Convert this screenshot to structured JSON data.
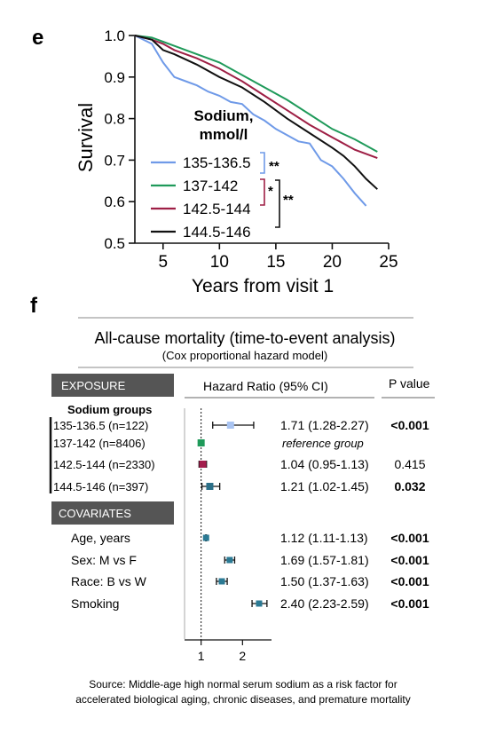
{
  "panels": {
    "e_label": "e",
    "f_label": "f"
  },
  "chart_data": [
    {
      "type": "line",
      "panel": "e",
      "xlabel": "Years from visit 1",
      "ylabel": "Survival",
      "xlim": [
        2.5,
        25
      ],
      "ylim": [
        0.5,
        1.0
      ],
      "x_ticks": [
        "5",
        "10",
        "15",
        "20",
        "25"
      ],
      "y_ticks": [
        "0.5",
        "0.6",
        "0.7",
        "0.8",
        "0.9",
        "1.0"
      ],
      "legend_title": [
        "Sodium,",
        "mmol/l"
      ],
      "legend_position": "center-left",
      "grid": false,
      "series": [
        {
          "name": "135-136.5",
          "color": "#6f9ae8",
          "x": [
            2.5,
            4,
            5,
            6,
            7,
            8,
            9,
            10,
            11,
            12,
            13,
            14,
            15,
            16,
            17,
            18,
            19,
            20,
            21,
            22,
            23
          ],
          "y": [
            1.0,
            0.98,
            0.935,
            0.9,
            0.89,
            0.88,
            0.865,
            0.855,
            0.84,
            0.835,
            0.81,
            0.795,
            0.775,
            0.76,
            0.745,
            0.74,
            0.7,
            0.685,
            0.655,
            0.62,
            0.59
          ]
        },
        {
          "name": "137-142",
          "color": "#1f9a5a",
          "x": [
            2.5,
            4,
            5,
            6,
            8,
            10,
            12,
            14,
            16,
            18,
            20,
            22,
            24
          ],
          "y": [
            1.0,
            0.995,
            0.985,
            0.975,
            0.955,
            0.935,
            0.905,
            0.875,
            0.845,
            0.81,
            0.775,
            0.75,
            0.72
          ]
        },
        {
          "name": "142.5-144",
          "color": "#9e1f45",
          "x": [
            2.5,
            4,
            5,
            6,
            8,
            10,
            12,
            14,
            16,
            18,
            20,
            22,
            24
          ],
          "y": [
            1.0,
            0.99,
            0.98,
            0.965,
            0.945,
            0.92,
            0.89,
            0.855,
            0.82,
            0.785,
            0.755,
            0.725,
            0.705
          ]
        },
        {
          "name": "144.5-146",
          "color": "#111111",
          "x": [
            2.5,
            4,
            5,
            6,
            8,
            10,
            12,
            14,
            16,
            18,
            20,
            21,
            22,
            23,
            24
          ],
          "y": [
            1.0,
            0.99,
            0.965,
            0.955,
            0.93,
            0.9,
            0.875,
            0.84,
            0.8,
            0.765,
            0.73,
            0.71,
            0.685,
            0.655,
            0.63
          ]
        }
      ],
      "annotations": [
        {
          "text": "**",
          "between": [
            "135-136.5",
            "137-142"
          ]
        },
        {
          "text": "*",
          "between": [
            "137-142",
            "142.5-144"
          ]
        },
        {
          "text": "**",
          "between": [
            "137-142",
            "144.5-146"
          ]
        }
      ]
    },
    {
      "type": "forest",
      "panel": "f",
      "title": "All-cause mortality (time-to-event analysis)",
      "subtitle": "(Cox proportional hazard model)",
      "exposure_header": "EXPOSURE",
      "covariates_header": "COVARIATES",
      "hr_header": "Hazard Ratio (95% CI)",
      "p_header": "P value",
      "group_heading": "Sodium groups",
      "reference_line": 1,
      "x_ticks": [
        "1",
        "2"
      ],
      "xlim": [
        0.6,
        2.7
      ],
      "rows": [
        {
          "label": "135-136.5 (n=122)",
          "hr": 1.71,
          "lo": 1.28,
          "hi": 2.27,
          "text": "1.71 (1.28-2.27)",
          "p": "<0.001",
          "bold": true,
          "color": "#a9c4f2",
          "section": "exposure"
        },
        {
          "label": "137-142 (n=8406)",
          "hr": 1.0,
          "lo": 1.0,
          "hi": 1.0,
          "text": "reference group",
          "p": "",
          "bold": false,
          "italic": true,
          "color": "#1f9a5a",
          "section": "exposure"
        },
        {
          "label": "142.5-144 (n=2330)",
          "hr": 1.04,
          "lo": 0.95,
          "hi": 1.13,
          "text": "1.04 (0.95-1.13)",
          "p": "0.415",
          "bold": false,
          "color": "#a31d4c",
          "section": "exposure"
        },
        {
          "label": "144.5-146 (n=397)",
          "hr": 1.21,
          "lo": 1.02,
          "hi": 1.45,
          "text": "1.21 (1.02-1.45)",
          "p": "0.032",
          "bold": true,
          "color": "#2b6f88",
          "section": "exposure"
        },
        {
          "label": "Age, years",
          "hr": 1.12,
          "lo": 1.11,
          "hi": 1.13,
          "text": "1.12 (1.11-1.13)",
          "p": "<0.001",
          "bold": true,
          "color": "#2b7a94",
          "section": "covariates"
        },
        {
          "label": "Sex: M vs F",
          "hr": 1.69,
          "lo": 1.57,
          "hi": 1.81,
          "text": "1.69 (1.57-1.81)",
          "p": "<0.001",
          "bold": true,
          "color": "#2b7a94",
          "section": "covariates"
        },
        {
          "label": "Race: B vs W",
          "hr": 1.5,
          "lo": 1.37,
          "hi": 1.63,
          "text": "1.50 (1.37-1.63)",
          "p": "<0.001",
          "bold": true,
          "color": "#2b7a94",
          "section": "covariates"
        },
        {
          "label": "Smoking",
          "hr": 2.4,
          "lo": 2.23,
          "hi": 2.59,
          "text": "2.40 (2.23-2.59)",
          "p": "<0.001",
          "bold": true,
          "color": "#2b7a94",
          "section": "covariates"
        }
      ],
      "source_lines": [
        "Source: Middle-age high normal serum sodium as a risk factor for",
        "accelerated biological aging, chronic diseases, and premature mortality"
      ]
    }
  ]
}
